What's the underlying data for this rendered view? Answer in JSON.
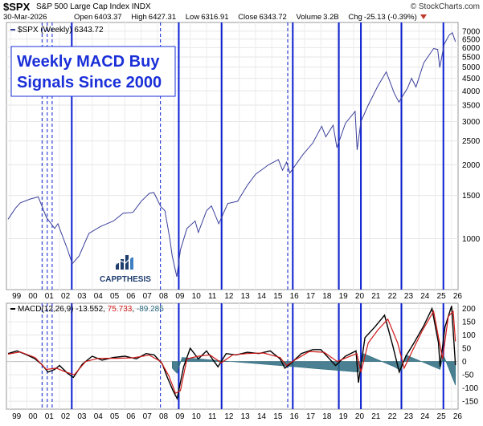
{
  "header": {
    "symbol": "$SPX",
    "name": "S&P 500 Large Cap Index INDX",
    "credit": "© StockCharts.com",
    "date": "30-Mar-2026",
    "open_label": "Open",
    "open": "6403.37",
    "high_label": "High",
    "high": "6427.31",
    "low_label": "Low",
    "low": "6316.91",
    "close_label": "Close",
    "close": "6343.72",
    "volume_label": "Volume",
    "volume": "3.2B",
    "chg_label": "Chg",
    "chg": "-25.13 (-0.39%)"
  },
  "legend": {
    "price": "$SPX (Weekly) 6343.72",
    "macd_label": "MACD(12,26,9)",
    "macd_value": "-13.552",
    "signal_value": "75.733",
    "hist_value": "-89.285"
  },
  "title_box": {
    "line1": "Weekly MACD Buy",
    "line2": "Signals Since 2000"
  },
  "logo": {
    "text": "CAPPTHESIS"
  },
  "colors": {
    "price_line": "#3a3f9a",
    "macd_line": "#000000",
    "signal_line": "#d01818",
    "histogram": "#2a6a7e",
    "buy_signal": "#0a1fd0",
    "title_text": "#1a2fd8"
  },
  "chart_data": [
    {
      "type": "line",
      "title": "$SPX (Weekly) 6343.72",
      "scale": "log",
      "y_ticks": [
        1000,
        1500,
        2000,
        2500,
        3000,
        3500,
        4000,
        4500,
        5000,
        5500,
        6000,
        6500,
        7000
      ],
      "x_tick_labels": [
        "99",
        "00",
        "01",
        "02",
        "03",
        "04",
        "05",
        "06",
        "07",
        "08",
        "09",
        "10",
        "11",
        "12",
        "13",
        "14",
        "15",
        "16",
        "17",
        "18",
        "19",
        "20",
        "21",
        "22",
        "23",
        "24",
        "25",
        "26"
      ],
      "x_tick_years": [
        1999,
        2000,
        2001,
        2002,
        2003,
        2004,
        2005,
        2006,
        2007,
        2008,
        2009,
        2010,
        2011,
        2012,
        2013,
        2014,
        2015,
        2016,
        2017,
        2018,
        2019,
        2020,
        2021,
        2022,
        2023,
        2024,
        2025,
        2026
      ],
      "series": [
        {
          "name": "$SPX",
          "x": [
            1998.85,
            1999.3,
            1999.6,
            2000.2,
            2000.7,
            2001.2,
            2001.7,
            2001.9,
            2002.5,
            2002.78,
            2003.2,
            2003.8,
            2004.5,
            2005.3,
            2005.9,
            2006.5,
            2007.0,
            2007.5,
            2007.78,
            2008.2,
            2008.45,
            2008.75,
            2008.9,
            2009.18,
            2009.4,
            2009.8,
            2010.3,
            2010.5,
            2011.0,
            2011.3,
            2011.75,
            2012.3,
            2012.9,
            2013.5,
            2014.0,
            2014.8,
            2015.4,
            2015.65,
            2015.9,
            2016.1,
            2016.9,
            2017.5,
            2018.05,
            2018.3,
            2018.75,
            2018.98,
            2019.5,
            2020.1,
            2020.22,
            2020.45,
            2020.9,
            2021.5,
            2022.0,
            2022.5,
            2022.78,
            2023.3,
            2023.55,
            2023.82,
            2024.3,
            2024.9,
            2025.15,
            2025.28,
            2025.55,
            2025.85,
            2026.05,
            2026.24
          ],
          "y": [
            1200,
            1330,
            1400,
            1450,
            1480,
            1220,
            1100,
            1150,
            900,
            790,
            850,
            1050,
            1120,
            1180,
            1270,
            1280,
            1420,
            1530,
            1540,
            1350,
            1300,
            1000,
            850,
            700,
            900,
            1100,
            1180,
            1060,
            1300,
            1360,
            1150,
            1390,
            1420,
            1650,
            1830,
            2000,
            2100,
            1900,
            2050,
            1850,
            2200,
            2450,
            2870,
            2600,
            2900,
            2350,
            2950,
            3300,
            2300,
            3000,
            3500,
            4200,
            4780,
            3900,
            3600,
            4100,
            4500,
            4150,
            5200,
            5950,
            5900,
            4980,
            6200,
            6750,
            6900,
            6343.72
          ]
        }
      ],
      "buy_signals_solid": [
        2002.75,
        2009.3,
        2011.92,
        2016.28,
        2019.1,
        2020.45,
        2022.93,
        2025.5
      ],
      "buy_signals_dashed": [
        2000.93,
        2001.25,
        2001.55,
        2008.18,
        2015.97
      ]
    },
    {
      "type": "line",
      "title": "MACD(12,26,9) -13.552, 75.733, -89.285",
      "y_ticks": [
        -150,
        -100,
        -50,
        0,
        50,
        100,
        150,
        200
      ],
      "ylim": [
        -180,
        220
      ],
      "series": [
        {
          "name": "MACD(12,26,9)",
          "x": [
            1998.85,
            1999.4,
            2000.0,
            2000.5,
            2000.9,
            2001.3,
            2001.7,
            2002.0,
            2002.5,
            2002.85,
            2003.4,
            2004.0,
            2004.6,
            2005.3,
            2006.0,
            2006.7,
            2007.3,
            2007.8,
            2008.3,
            2008.6,
            2008.95,
            2009.2,
            2009.6,
            2010.0,
            2010.5,
            2011.0,
            2011.7,
            2012.2,
            2012.8,
            2013.5,
            2014.2,
            2014.9,
            2015.5,
            2015.8,
            2016.2,
            2016.8,
            2017.5,
            2018.0,
            2018.9,
            2019.5,
            2020.15,
            2020.3,
            2020.7,
            2021.3,
            2021.9,
            2022.4,
            2022.8,
            2023.2,
            2023.7,
            2024.3,
            2024.8,
            2025.2,
            2025.3,
            2025.6,
            2026.0,
            2026.24
          ],
          "y": [
            30,
            40,
            25,
            10,
            -10,
            -40,
            -30,
            -15,
            -45,
            -60,
            -10,
            20,
            5,
            15,
            20,
            10,
            30,
            25,
            -10,
            -60,
            -110,
            -140,
            -20,
            50,
            10,
            40,
            -20,
            30,
            25,
            35,
            30,
            40,
            10,
            -25,
            -5,
            30,
            45,
            45,
            -15,
            20,
            40,
            -80,
            90,
            130,
            175,
            60,
            -40,
            20,
            70,
            135,
            200,
            70,
            -20,
            130,
            210,
            -13.552
          ]
        },
        {
          "name": "Signal",
          "x": [
            1998.85,
            1999.6,
            2000.5,
            2001.2,
            2001.8,
            2002.4,
            2002.9,
            2003.6,
            2004.4,
            2005.5,
            2006.5,
            2007.5,
            2008.2,
            2008.7,
            2009.1,
            2009.4,
            2009.8,
            2010.5,
            2011.2,
            2011.9,
            2012.6,
            2013.5,
            2014.5,
            2015.5,
            2015.9,
            2016.4,
            2017.3,
            2018.2,
            2019.0,
            2019.6,
            2020.2,
            2020.45,
            2020.9,
            2021.5,
            2022.1,
            2022.7,
            2023.1,
            2023.6,
            2024.2,
            2024.9,
            2025.3,
            2025.45,
            2025.8,
            2026.1,
            2026.24
          ],
          "y": [
            28,
            36,
            15,
            -30,
            -25,
            -40,
            -50,
            0,
            12,
            12,
            14,
            24,
            0,
            -55,
            -120,
            -110,
            10,
            20,
            25,
            -5,
            25,
            30,
            32,
            15,
            -15,
            5,
            38,
            35,
            0,
            15,
            30,
            -40,
            70,
            120,
            160,
            70,
            -25,
            40,
            115,
            190,
            60,
            10,
            170,
            190,
            75.733
          ]
        },
        {
          "name": "Histogram",
          "x": [
            2008.9,
            2009.2,
            2009.5,
            2020.3,
            2020.6,
            2022.5,
            2022.9,
            2023.2,
            2025.3,
            2025.5,
            2026.24
          ],
          "y": [
            -25,
            -45,
            15,
            -40,
            30,
            -20,
            -35,
            25,
            -30,
            25,
            -89.285
          ]
        }
      ]
    }
  ]
}
